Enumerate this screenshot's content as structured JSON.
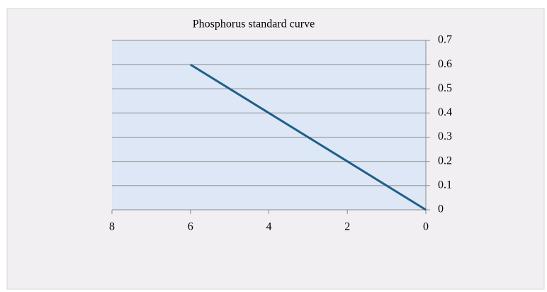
{
  "chart_data": {
    "type": "line",
    "title": "Phosphorus standard curve",
    "x": [
      0,
      2,
      4,
      6
    ],
    "series": [
      {
        "name": "Phosphorus",
        "color": "#1f5f8b",
        "values": [
          0,
          0.2,
          0.4,
          0.6
        ]
      }
    ],
    "xlim": [
      8,
      0
    ],
    "xticks": [
      8,
      6,
      4,
      2,
      0
    ],
    "ylim": [
      0,
      0.7
    ],
    "yticks": [
      0,
      0.1,
      0.2,
      0.3,
      0.4,
      0.5,
      0.6,
      0.7
    ],
    "grid": true
  }
}
